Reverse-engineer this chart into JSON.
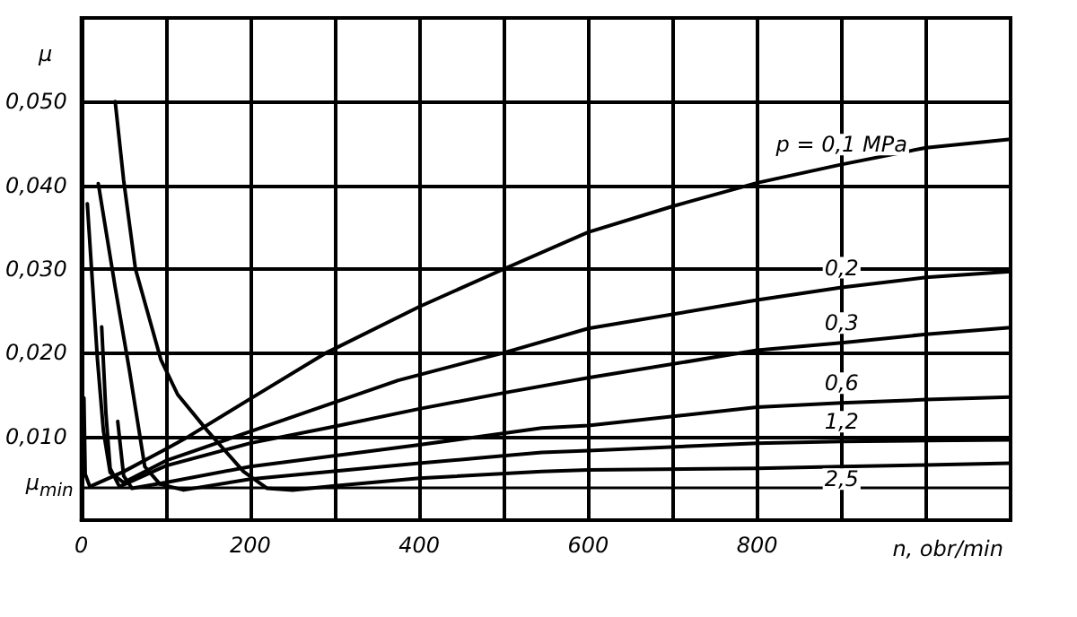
{
  "chart_data": {
    "type": "line",
    "xlabel": "n, obr/min",
    "ylabel": "μ",
    "xlim": [
      0,
      1100
    ],
    "ylim": [
      0,
      0.06
    ],
    "xticks": [
      0,
      {
        "value": 100,
        "label": null
      },
      200,
      {
        "value": 300,
        "label": null
      },
      400,
      {
        "value": 500,
        "label": null
      },
      600,
      {
        "value": 700,
        "label": null
      },
      800,
      {
        "value": 900,
        "label": null
      },
      {
        "value": 1000,
        "label": null
      }
    ],
    "yticks": [
      {
        "value": 0.01,
        "label": "0,010"
      },
      {
        "value": 0.02,
        "label": "0,020"
      },
      {
        "value": 0.03,
        "label": "0,030"
      },
      {
        "value": 0.04,
        "label": "0,040"
      },
      {
        "value": 0.05,
        "label": "0,050"
      }
    ],
    "grid": true,
    "legend": false,
    "marker": "none",
    "line_style": "solid",
    "ref_lines": [
      {
        "axis": "y",
        "value": 0.004,
        "label": "μ$_{min}$",
        "color": "#000000"
      }
    ],
    "series": [
      {
        "name": "p = 0,1 MPa",
        "color": "#000000",
        "x": [
          3,
          4.5,
          10,
          50,
          100,
          127,
          200,
          290,
          400,
          500,
          600,
          700,
          800,
          900,
          1000,
          1100
        ],
        "values": [
          0.0146,
          0.0055,
          0.004,
          0.0058,
          0.0085,
          0.01,
          0.0145,
          0.02,
          0.0255,
          0.03,
          0.0344,
          0.0375,
          0.0403,
          0.0425,
          0.0445,
          0.0455
        ]
      },
      {
        "name": "0,2",
        "color": "#000000",
        "x": [
          7,
          12,
          19,
          26,
          34,
          50,
          100,
          200,
          375,
          500,
          600,
          800,
          900,
          1000,
          1100
        ],
        "values": [
          0.0378,
          0.03,
          0.0192,
          0.0107,
          0.0057,
          0.0045,
          0.0071,
          0.0106,
          0.0167,
          0.02,
          0.0229,
          0.0263,
          0.0278,
          0.029,
          0.0297
        ]
      },
      {
        "name": "0,3",
        "color": "#000000",
        "x": [
          24,
          29,
          34,
          45,
          100,
          200,
          300,
          400,
          500,
          600,
          800,
          900,
          1000,
          1100
        ],
        "values": [
          0.0231,
          0.0128,
          0.0062,
          0.004,
          0.0065,
          0.0092,
          0.0112,
          0.0133,
          0.0152,
          0.017,
          0.0203,
          0.0212,
          0.0222,
          0.023
        ]
      },
      {
        "name": "0,6",
        "color": "#000000",
        "x": [
          43,
          50,
          60,
          100,
          200,
          400,
          545,
          600,
          800,
          900,
          1000,
          1100
        ],
        "values": [
          0.0118,
          0.0053,
          0.0038,
          0.0045,
          0.0064,
          0.009,
          0.011,
          0.0113,
          0.0135,
          0.014,
          0.0144,
          0.0147
        ]
      },
      {
        "name": "1,2",
        "color": "#000000",
        "x": [
          20,
          40,
          57,
          75,
          93,
          121,
          200,
          400,
          545,
          600,
          800,
          900,
          1000,
          1100
        ],
        "values": [
          0.0402,
          0.0278,
          0.0178,
          0.0064,
          0.0043,
          0.0036,
          0.0049,
          0.0068,
          0.0081,
          0.0083,
          0.0092,
          0.0094,
          0.0095,
          0.0096
        ]
      },
      {
        "name": "2,5",
        "color": "#000000",
        "x": [
          40,
          50,
          64,
          94,
          114,
          149,
          192,
          220,
          250,
          300,
          400,
          545,
          600,
          800,
          900,
          1000,
          1100
        ],
        "values": [
          0.05,
          0.0406,
          0.03,
          0.0192,
          0.015,
          0.0107,
          0.0058,
          0.0038,
          0.0036,
          0.0041,
          0.005,
          0.0058,
          0.006,
          0.0062,
          0.0064,
          0.0066,
          0.0068
        ]
      }
    ]
  }
}
